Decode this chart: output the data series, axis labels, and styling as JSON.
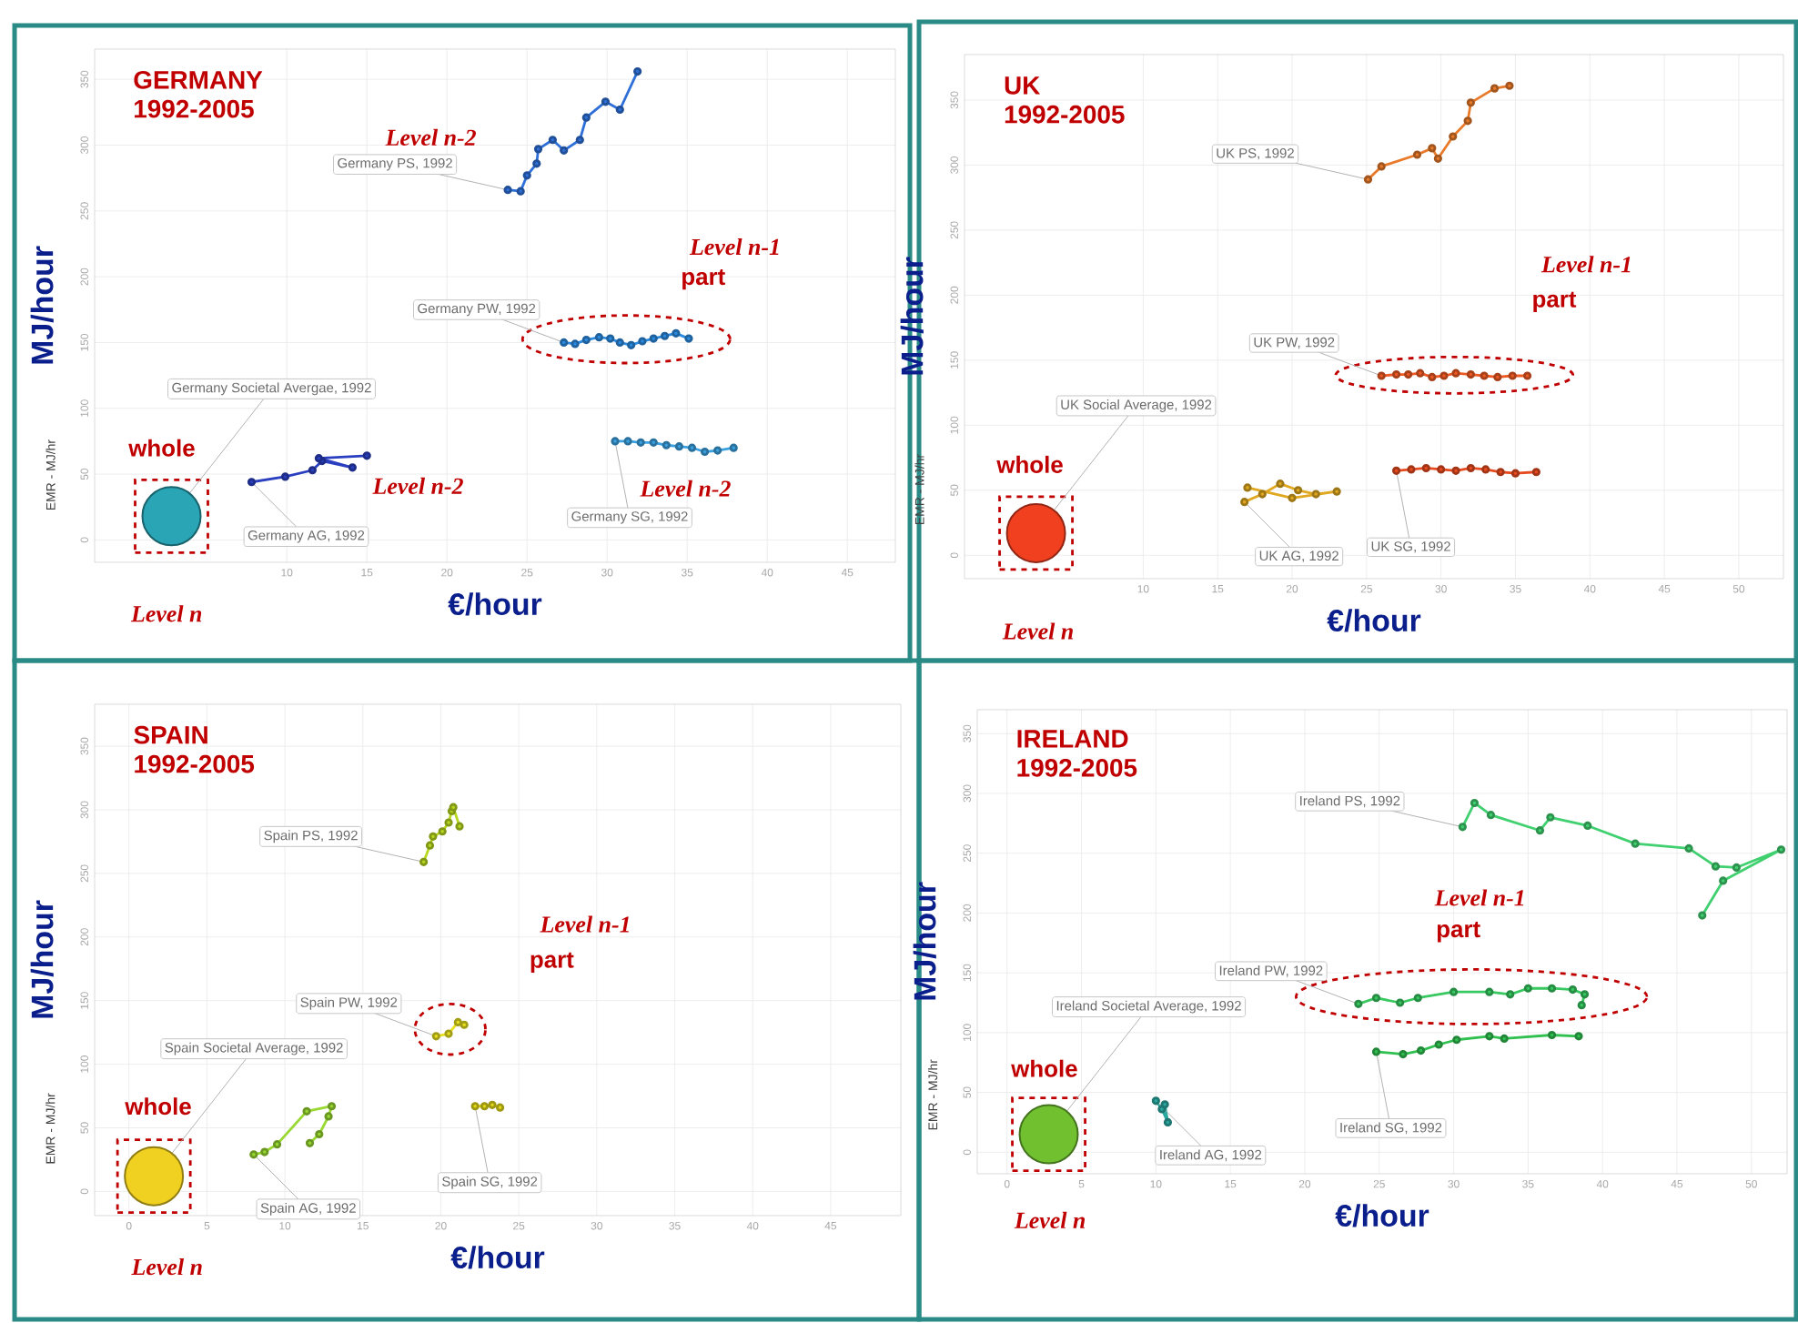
{
  "chart_data": [
    {
      "type": "line",
      "title": "GERMANY",
      "subtitle": "1992-2005",
      "xlabel": "€/hour",
      "ylabel": "MJ/hour",
      "xlim": [
        -2,
        48
      ],
      "ylim": [
        -17,
        373
      ],
      "xticks": [
        10,
        15,
        20,
        25,
        30,
        35,
        40,
        45
      ],
      "yticks": [
        0,
        50,
        100,
        150,
        200,
        250,
        300,
        350
      ],
      "grid": true,
      "marker": "circle",
      "line_style": "solid",
      "series": [
        {
          "color": "#2e6fd8",
          "x": [
            23.8,
            24.6,
            25.0,
            25.6,
            25.7,
            26.6,
            27.3,
            28.3,
            28.7,
            29.9,
            30.8,
            31.9
          ],
          "values": [
            266,
            265,
            277,
            286,
            297,
            304,
            296,
            304,
            321,
            333,
            327,
            356
          ]
        },
        {
          "color": "#2b8be0",
          "x": [
            27.3,
            28.0,
            28.7,
            29.5,
            30.2,
            30.8,
            31.5,
            32.2,
            32.9,
            33.6,
            34.3,
            35.1
          ],
          "values": [
            150,
            149,
            152,
            154,
            153,
            150,
            148,
            151,
            153,
            155,
            157,
            153
          ]
        },
        {
          "type": "bubble",
          "color": "#2aa5b5",
          "x": [
            2.8
          ],
          "values": [
            18
          ],
          "sizes": [
            1
          ]
        },
        {
          "color": "#2a3fbf",
          "x": [
            7.8,
            9.9,
            11.6,
            12.2,
            14.1,
            12.0,
            15.0
          ],
          "values": [
            44,
            48,
            53,
            60,
            55,
            62,
            64
          ]
        },
        {
          "color": "#3ba0e0",
          "x": [
            30.5,
            31.3,
            32.1,
            32.9,
            33.7,
            34.5,
            35.3,
            36.1,
            36.9,
            37.9
          ],
          "values": [
            75,
            75,
            74,
            74,
            72,
            71,
            70,
            67,
            68,
            70
          ]
        }
      ],
      "annotations": [
        {
          "text": "Germany PS, 1992",
          "x": 23.8,
          "y": 266
        },
        {
          "text": "Germany PW, 1992",
          "x": 27.3,
          "y": 150
        },
        {
          "text": "Germany Societal Avergae, 1992",
          "x": 2.8,
          "y": 18
        },
        {
          "text": "Germany AG, 1992",
          "x": 7.8,
          "y": 44
        },
        {
          "text": "Germany SG, 1992",
          "x": 30.5,
          "y": 75
        },
        "EMR - MJ/hr",
        "Level n",
        "Level n-1",
        "part",
        "whole",
        "Level n-2",
        "Level n-2",
        "Level n-2"
      ]
    },
    {
      "type": "line",
      "title": "UK",
      "subtitle": "1992-2005",
      "xlabel": "€/hour",
      "ylabel": "MJ/hour",
      "xlim": [
        -2,
        53
      ],
      "ylim": [
        -18,
        385
      ],
      "xticks": [
        10,
        15,
        20,
        25,
        30,
        35,
        40,
        45,
        50
      ],
      "yticks": [
        0,
        50,
        100,
        150,
        200,
        250,
        300,
        350
      ],
      "grid": true,
      "marker": "circle",
      "line_style": "solid",
      "series": [
        {
          "color": "#e87a2a",
          "x": [
            25.1,
            26.0,
            28.4,
            29.4,
            29.8,
            30.8,
            31.8,
            32.0,
            33.6,
            34.6
          ],
          "values": [
            289,
            299,
            308,
            313,
            305,
            322,
            334,
            348,
            359,
            361
          ]
        },
        {
          "color": "#ee5a24",
          "x": [
            26.0,
            27.0,
            27.8,
            28.6,
            29.4,
            30.2,
            31.0,
            32.0,
            32.9,
            33.8,
            34.8,
            35.8
          ],
          "values": [
            138,
            139,
            139,
            140,
            137,
            138,
            140,
            139,
            138,
            137,
            138,
            138
          ]
        },
        {
          "type": "bubble",
          "color": "#f04020",
          "x": [
            2.8
          ],
          "values": [
            17
          ],
          "sizes": [
            1
          ]
        },
        {
          "color": "#e0a820",
          "x": [
            16.8,
            18.0,
            19.2,
            20.4,
            21.6,
            23.0,
            20.0,
            17.0
          ],
          "values": [
            41,
            47,
            55,
            50,
            47,
            49,
            44,
            52
          ]
        },
        {
          "color": "#e84a20",
          "x": [
            27.0,
            28.0,
            29.0,
            30.0,
            31.0,
            32.0,
            33.0,
            34.0,
            35.0,
            36.4
          ],
          "values": [
            65,
            66,
            67,
            66,
            65,
            67,
            66,
            64,
            63,
            64
          ]
        }
      ],
      "annotations": [
        {
          "text": "UK PS, 1992",
          "x": 25.1,
          "y": 289
        },
        {
          "text": "UK PW, 1992",
          "x": 26.0,
          "y": 138
        },
        {
          "text": "UK Social Average, 1992",
          "x": 2.8,
          "y": 17
        },
        {
          "text": "UK AG, 1992",
          "x": 16.8,
          "y": 41
        },
        {
          "text": "UK SG, 1992",
          "x": 27.0,
          "y": 65
        },
        "EMR - MJ/hr",
        "Level n",
        "Level n-1",
        "part",
        "whole"
      ]
    },
    {
      "type": "line",
      "title": "SPAIN",
      "subtitle": "1992-2005",
      "xlabel": "€/hour",
      "ylabel": "MJ/hour",
      "xlim": [
        -2.2,
        49.5
      ],
      "ylim": [
        -19,
        383
      ],
      "xticks": [
        0,
        5,
        10,
        15,
        20,
        25,
        30,
        35,
        40,
        45
      ],
      "yticks": [
        0,
        50,
        100,
        150,
        200,
        250,
        300,
        350
      ],
      "grid": true,
      "marker": "circle",
      "line_style": "solid",
      "series": [
        {
          "color": "#b8d820",
          "x": [
            18.9,
            19.3,
            19.5,
            20.1,
            20.5,
            20.7,
            20.8,
            21.2
          ],
          "values": [
            259,
            272,
            279,
            283,
            290,
            299,
            302,
            287
          ]
        },
        {
          "color": "#e8e020",
          "x": [
            19.7,
            20.5,
            21.1,
            21.5
          ],
          "values": [
            122,
            124,
            133,
            131
          ]
        },
        {
          "type": "bubble",
          "color": "#f0d020",
          "x": [
            1.6
          ],
          "values": [
            12
          ],
          "sizes": [
            1
          ]
        },
        {
          "color": "#98d830",
          "x": [
            8.0,
            8.7,
            9.5,
            11.4,
            13.0,
            12.8,
            12.2,
            11.6
          ],
          "values": [
            29,
            31,
            37,
            63,
            67,
            59,
            45,
            38
          ]
        },
        {
          "color": "#e0d818",
          "x": [
            22.2,
            22.8,
            23.3,
            23.8
          ],
          "values": [
            67,
            67,
            68,
            66
          ]
        }
      ],
      "annotations": [
        {
          "text": "Spain PS, 1992",
          "x": 18.9,
          "y": 259
        },
        {
          "text": "Spain PW, 1992",
          "x": 19.7,
          "y": 122
        },
        {
          "text": "Spain Societal Average, 1992",
          "x": 1.6,
          "y": 12
        },
        {
          "text": "Spain AG, 1992",
          "x": 8.0,
          "y": 29
        },
        {
          "text": "Spain SG, 1992",
          "x": 22.2,
          "y": 67
        },
        "EMR - MJ/hr",
        "Level n",
        "Level n-1",
        "part",
        "whole"
      ]
    },
    {
      "type": "line",
      "title": "IRELAND",
      "subtitle": "1992-2005",
      "xlabel": "€/hour",
      "ylabel": "MJ/hour",
      "xlim": [
        -2,
        52.4
      ],
      "ylim": [
        -18,
        370
      ],
      "xticks": [
        0,
        5,
        10,
        15,
        20,
        25,
        30,
        35,
        40,
        45,
        50
      ],
      "yticks": [
        0,
        50,
        100,
        150,
        200,
        250,
        300,
        350
      ],
      "grid": true,
      "marker": "circle",
      "line_style": "solid",
      "series": [
        {
          "color": "#40d070",
          "x": [
            30.6,
            31.4,
            32.5,
            35.8,
            36.5,
            39.0,
            42.2,
            45.8,
            47.6,
            49.0,
            52.0,
            48.1,
            46.7
          ],
          "values": [
            272,
            292,
            282,
            269,
            280,
            273,
            258,
            254,
            239,
            238,
            253,
            227,
            198
          ]
        },
        {
          "color": "#38c860",
          "x": [
            23.6,
            24.8,
            26.4,
            27.6,
            30.0,
            32.4,
            33.8,
            35.0,
            36.6,
            38.0,
            38.8,
            38.6
          ],
          "values": [
            124,
            129,
            125,
            129,
            134,
            134,
            132,
            137,
            137,
            136,
            132,
            123
          ]
        },
        {
          "type": "bubble",
          "color": "#70c030",
          "x": [
            2.8
          ],
          "values": [
            15
          ],
          "sizes": [
            1
          ]
        },
        {
          "color": "#2aa8a0",
          "x": [
            10.0,
            10.4,
            10.8,
            10.6
          ],
          "values": [
            43,
            36,
            25,
            40
          ]
        },
        {
          "color": "#30c050",
          "x": [
            24.8,
            26.6,
            27.8,
            29.0,
            30.2,
            32.4,
            33.4,
            36.6,
            38.4
          ],
          "values": [
            84,
            82,
            85,
            90,
            94,
            97,
            95,
            98,
            97
          ]
        }
      ],
      "annotations": [
        {
          "text": "Ireland PS, 1992",
          "x": 30.6,
          "y": 272
        },
        {
          "text": "Ireland PW, 1992",
          "x": 23.6,
          "y": 124
        },
        {
          "text": "Ireland Societal Average, 1992",
          "x": 2.8,
          "y": 15
        },
        {
          "text": "Ireland AG, 1992",
          "x": 10.0,
          "y": 43
        },
        {
          "text": "Ireland SG, 1992",
          "x": 24.8,
          "y": 84
        },
        "EMR - MJ/hr",
        "Level n",
        "Level n-1",
        "part",
        "whole"
      ]
    }
  ]
}
